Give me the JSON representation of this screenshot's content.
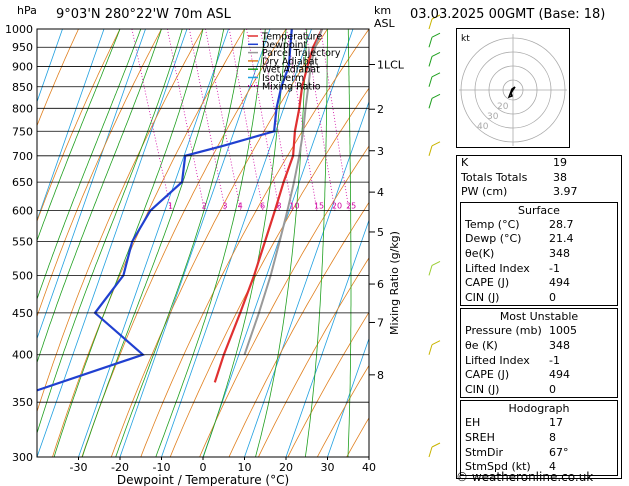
{
  "header": {
    "units_label": "hPa",
    "location": "9°03'N 280°22'W 70m ASL",
    "km_label": "km",
    "asl_label": "ASL",
    "datetime": "03.03.2025 00GMT (Base: 18)"
  },
  "legend": [
    {
      "label": "Temperature",
      "color": "#e03030"
    },
    {
      "label": "Dewpoint",
      "color": "#2040d0"
    },
    {
      "label": "Parcel Trajectory",
      "color": "#999999"
    },
    {
      "label": "Dry Adiabat",
      "color": "#e08020"
    },
    {
      "label": "Wet Adiabat",
      "color": "#20a020"
    },
    {
      "label": "Isotherm",
      "color": "#20a0e0"
    },
    {
      "label": "Mixing Ratio",
      "color": "#d000a0"
    }
  ],
  "chart_data": {
    "type": "line",
    "subtype": "skew-T log-P diagram",
    "xlabel": "Dewpoint / Temperature (°C)",
    "ylabel_left": "hPa",
    "ylabel_right": "Mixing Ratio (g/kg)",
    "x_ticks": [
      -30,
      -20,
      -10,
      0,
      10,
      20,
      30,
      40
    ],
    "xlim": [
      -40,
      40
    ],
    "pressure_ticks": [
      300,
      350,
      400,
      450,
      500,
      550,
      600,
      650,
      700,
      750,
      800,
      850,
      900,
      950,
      1000
    ],
    "ylim_hpa": [
      1000,
      300
    ],
    "y_scale": "log",
    "km_ticks": [
      {
        "label": "8",
        "p": 378
      },
      {
        "label": "7",
        "p": 438
      },
      {
        "label": "6",
        "p": 488
      },
      {
        "label": "5",
        "p": 565
      },
      {
        "label": "4",
        "p": 632
      },
      {
        "label": "3",
        "p": 710
      },
      {
        "label": "2",
        "p": 798
      },
      {
        "label": "1LCL",
        "p": 905
      }
    ],
    "mixing_ratio_labels": [
      "1",
      "2",
      "3",
      "4",
      "6",
      "8",
      "10",
      "15",
      "20",
      "25"
    ],
    "mixing_ratio_values": [
      1,
      2,
      3,
      4,
      6,
      8,
      10,
      15,
      20,
      25
    ],
    "series": [
      {
        "name": "Temperature",
        "color": "#e03030",
        "p": [
          1000,
          950,
          900,
          850,
          800,
          750,
          700,
          650,
          600,
          550,
          500,
          450,
          400,
          370
        ],
        "t": [
          28.7,
          25,
          22,
          19,
          16.5,
          13.5,
          11,
          6.5,
          2,
          -3,
          -8.5,
          -15,
          -22.5,
          -27
        ]
      },
      {
        "name": "Dewpoint",
        "color": "#2040d0",
        "p": [
          1000,
          950,
          900,
          850,
          800,
          750,
          720,
          700,
          650,
          600,
          550,
          500,
          450,
          400,
          350,
          300
        ],
        "t": [
          21.4,
          19.5,
          17.5,
          14,
          11,
          8.5,
          -5,
          -15,
          -18,
          -28,
          -35,
          -40,
          -50,
          -42,
          -80,
          -80
        ]
      },
      {
        "name": "Parcel Trajectory",
        "color": "#999999",
        "p": [
          1000,
          950,
          905,
          850,
          800,
          750,
          700,
          650,
          600,
          550,
          500,
          450,
          400
        ],
        "t": [
          28.7,
          25.5,
          23,
          20.5,
          18,
          15.5,
          12.5,
          9,
          5,
          0.5,
          -4.5,
          -10.5,
          -17.5
        ]
      }
    ]
  },
  "indices": {
    "rows": [
      {
        "label": "K",
        "value": "19"
      },
      {
        "label": "Totals Totals",
        "value": "38"
      },
      {
        "label": "PW (cm)",
        "value": "3.97"
      }
    ],
    "surface": {
      "title": "Surface",
      "rows": [
        {
          "label": "Temp (°C)",
          "value": "28.7"
        },
        {
          "label": "Dewp (°C)",
          "value": "21.4"
        },
        {
          "label": "θe(K)",
          "value": "348"
        },
        {
          "label": "Lifted Index",
          "value": "-1"
        },
        {
          "label": "CAPE (J)",
          "value": "494"
        },
        {
          "label": "CIN (J)",
          "value": "0"
        }
      ]
    },
    "most_unstable": {
      "title": "Most Unstable",
      "rows": [
        {
          "label": "Pressure (mb)",
          "value": "1005"
        },
        {
          "label": "θe (K)",
          "value": "348"
        },
        {
          "label": "Lifted Index",
          "value": "-1"
        },
        {
          "label": "CAPE (J)",
          "value": "494"
        },
        {
          "label": "CIN (J)",
          "value": "0"
        }
      ]
    },
    "hodograph": {
      "title": "Hodograph",
      "rows": [
        {
          "label": "EH",
          "value": "17"
        },
        {
          "label": "SREH",
          "value": "8"
        },
        {
          "label": "StmDir",
          "value": "67°"
        },
        {
          "label": "StmSpd (kt)",
          "value": "4"
        }
      ]
    }
  },
  "hodograph_box": {
    "label": "kt",
    "ring_labels": [
      "40",
      "30",
      "20"
    ]
  },
  "copyright": "© weatheronline.co.uk"
}
